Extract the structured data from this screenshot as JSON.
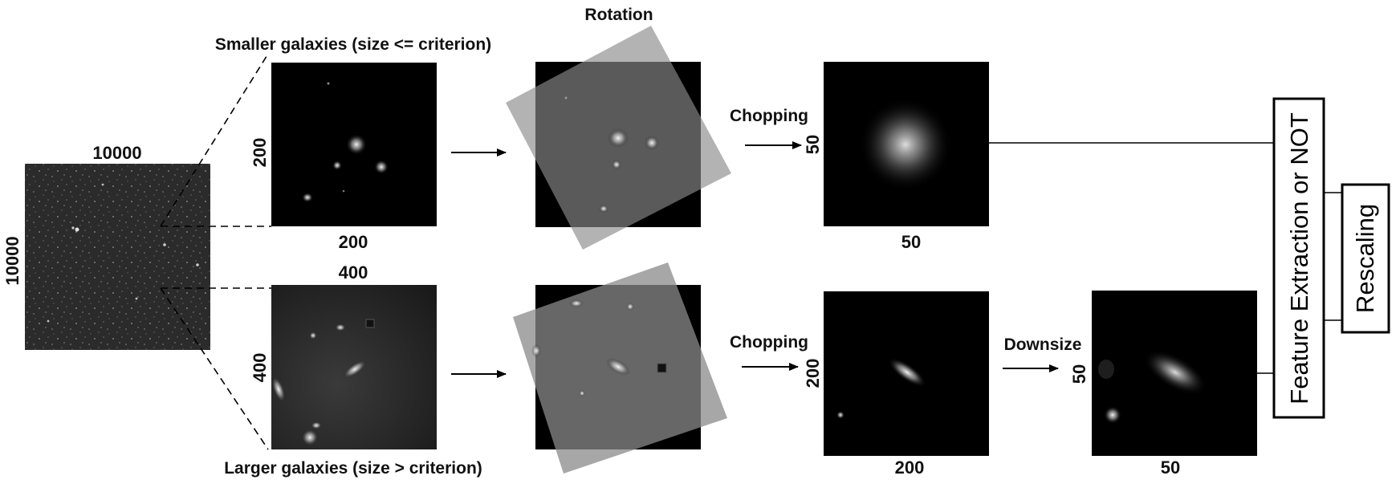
{
  "colors": {
    "background": "#ffffff",
    "panel_dark": "#000000",
    "sky_field": "#2b2b2b",
    "large_panel": "#1c1c1c",
    "rotated_overlay": "#8a8a8a",
    "line": "#000000"
  },
  "source_field": {
    "width_label": "10000",
    "height_label": "10000"
  },
  "small_branch": {
    "title": "Smaller galaxies (size <= criterion)",
    "crop": {
      "width_label": "200",
      "height_label": "200"
    },
    "rotation_label": "Rotation",
    "chopping_label": "Chopping",
    "chopped": {
      "width_label": "50",
      "height_label": "50"
    }
  },
  "large_branch": {
    "title": "Larger galaxies (size > criterion)",
    "crop": {
      "width_label": "400",
      "height_label": "400"
    },
    "chopping_label": "Chopping",
    "chopped": {
      "width_label": "200",
      "height_label": "200"
    },
    "downsize_label": "Downsize",
    "downsized": {
      "width_label": "50",
      "height_label": "50"
    }
  },
  "feature_box_label": "Feature Extraction or NOT",
  "rescaling_box_label": "Rescaling"
}
